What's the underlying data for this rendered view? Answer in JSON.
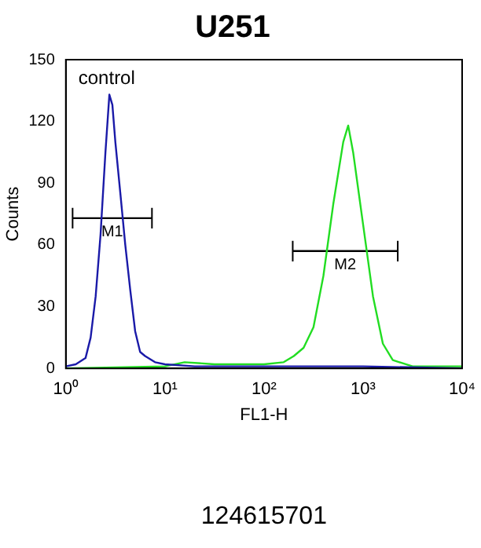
{
  "chart_data": {
    "type": "line",
    "title": "U251",
    "xlabel": "FL1-H",
    "ylabel": "Counts",
    "log": "x",
    "xlim": [
      1,
      10000
    ],
    "xticks": [
      {
        "value": 1,
        "label": "10⁰"
      },
      {
        "value": 10,
        "label": "10¹"
      },
      {
        "value": 100,
        "label": "10²"
      },
      {
        "value": 1000,
        "label": "10³"
      },
      {
        "value": 10000,
        "label": "10⁴"
      }
    ],
    "ylim": [
      0,
      150
    ],
    "yticks": [
      0,
      30,
      60,
      90,
      120,
      150
    ],
    "grid": false,
    "legend": false,
    "marker": "none",
    "series": [
      {
        "color": "#1a1aa8",
        "x": [
          1,
          1.26,
          1.58,
          1.78,
          2,
          2.24,
          2.51,
          2.75,
          2.95,
          3.16,
          3.55,
          3.98,
          4.47,
          5.01,
          5.62,
          6.31,
          7.94,
          10,
          20,
          100,
          1000,
          10000
        ],
        "values": [
          1,
          2,
          5,
          15,
          35,
          65,
          105,
          133,
          128,
          110,
          85,
          60,
          38,
          18,
          8,
          6,
          3,
          2,
          1,
          1,
          1,
          0
        ]
      },
      {
        "color": "#22dd22",
        "x": [
          1,
          10,
          15.8,
          31.6,
          100,
          158,
          200,
          251,
          316,
          398,
          501,
          631,
          708,
          794,
          1000,
          1259,
          1585,
          1995,
          3162,
          10000
        ],
        "values": [
          0,
          1,
          3,
          2,
          2,
          3,
          6,
          10,
          20,
          45,
          80,
          110,
          118,
          105,
          70,
          35,
          12,
          4,
          1,
          1
        ]
      },
      {
        "name": "M1",
        "color": "#000000",
        "x": [
          1.17,
          7.4
        ],
        "values": [
          73,
          73
        ],
        "errors": [
          5,
          5
        ]
      },
      {
        "name": "M2",
        "color": "#000000",
        "x": [
          195,
          2240
        ],
        "values": [
          57,
          57
        ],
        "errors": [
          5,
          5
        ]
      }
    ],
    "annotations": [
      "control",
      "124615701"
    ]
  }
}
